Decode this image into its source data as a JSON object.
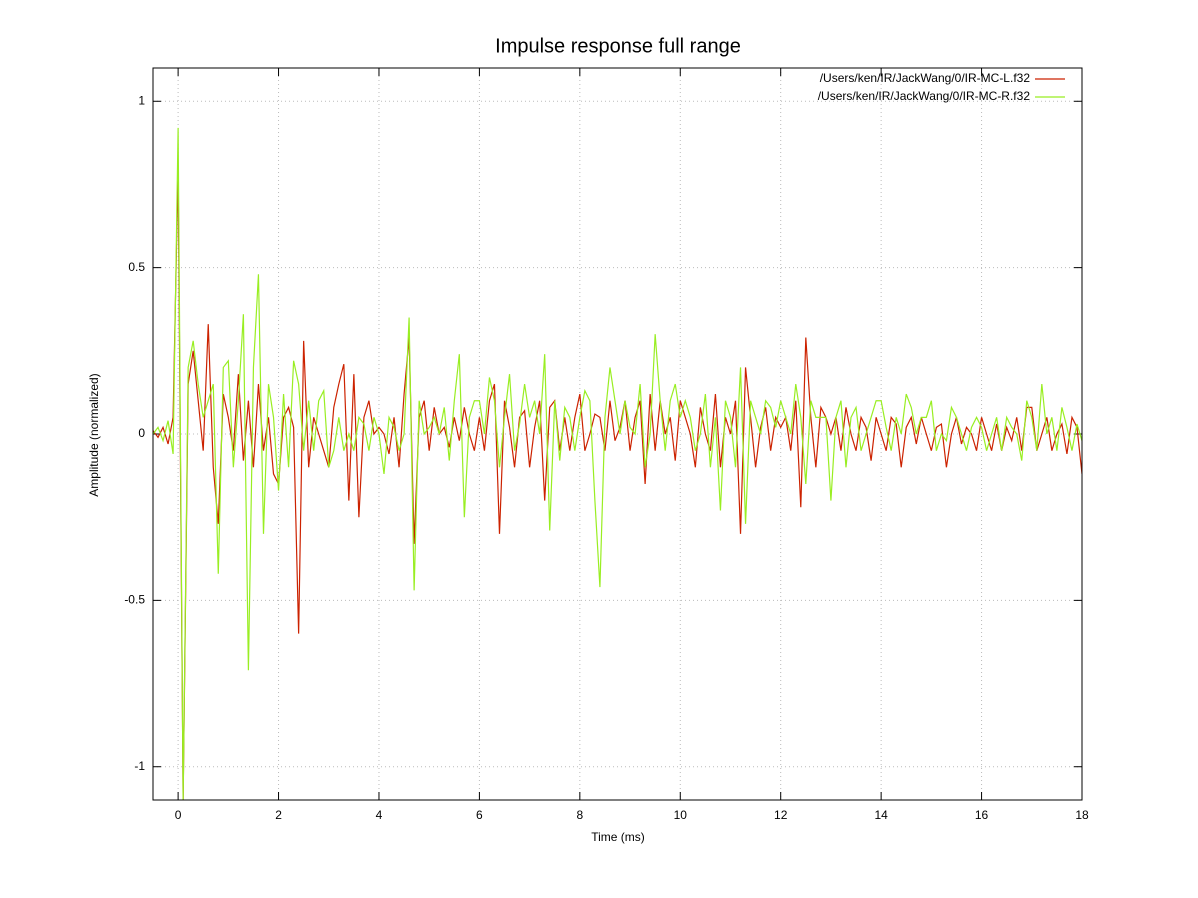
{
  "chart_data": {
    "type": "line",
    "title": "Impulse response full range",
    "x_label": "Time (ms)",
    "y_label": "Amplitude (normalized)",
    "xlim": [
      -0.5,
      18
    ],
    "ylim": [
      -1.1,
      1.1
    ],
    "xticks": [
      0,
      2,
      4,
      6,
      8,
      10,
      12,
      14,
      16,
      18
    ],
    "yticks": [
      -1,
      -0.5,
      0,
      0.5,
      1
    ],
    "grid": true,
    "legend": "top-right",
    "x": [
      -0.5,
      -0.4,
      -0.3,
      -0.2,
      -0.1,
      0.0,
      0.1,
      0.2,
      0.3,
      0.4,
      0.5,
      0.6,
      0.7,
      0.8,
      0.9,
      1.0,
      1.1,
      1.2,
      1.3,
      1.4,
      1.5,
      1.6,
      1.7,
      1.8,
      1.9,
      2.0,
      2.1,
      2.2,
      2.3,
      2.4,
      2.5,
      2.6,
      2.7,
      2.8,
      2.9,
      3.0,
      3.1,
      3.2,
      3.3,
      3.4,
      3.5,
      3.6,
      3.7,
      3.8,
      3.9,
      4.0,
      4.1,
      4.2,
      4.3,
      4.4,
      4.5,
      4.6,
      4.7,
      4.8,
      4.9,
      5.0,
      5.1,
      5.2,
      5.3,
      5.4,
      5.5,
      5.6,
      5.7,
      5.8,
      5.9,
      6.0,
      6.1,
      6.2,
      6.3,
      6.4,
      6.5,
      6.6,
      6.7,
      6.8,
      6.9,
      7.0,
      7.1,
      7.2,
      7.3,
      7.4,
      7.5,
      7.6,
      7.7,
      7.8,
      7.9,
      8.0,
      8.1,
      8.2,
      8.3,
      8.4,
      8.5,
      8.6,
      8.7,
      8.8,
      8.9,
      9.0,
      9.1,
      9.2,
      9.3,
      9.4,
      9.5,
      9.6,
      9.7,
      9.8,
      9.9,
      10.0,
      10.1,
      10.2,
      10.3,
      10.4,
      10.5,
      10.6,
      10.7,
      10.8,
      10.9,
      11.0,
      11.1,
      11.2,
      11.3,
      11.4,
      11.5,
      11.6,
      11.7,
      11.8,
      11.9,
      12.0,
      12.1,
      12.2,
      12.3,
      12.4,
      12.5,
      12.6,
      12.7,
      12.8,
      12.9,
      13.0,
      13.1,
      13.2,
      13.3,
      13.4,
      13.5,
      13.6,
      13.7,
      13.8,
      13.9,
      14.0,
      14.1,
      14.2,
      14.3,
      14.4,
      14.5,
      14.6,
      14.7,
      14.8,
      14.9,
      15.0,
      15.1,
      15.2,
      15.3,
      15.4,
      15.5,
      15.6,
      15.7,
      15.8,
      15.9,
      16.0,
      16.1,
      16.2,
      16.3,
      16.4,
      16.5,
      16.6,
      16.7,
      16.8,
      16.9,
      17.0,
      17.1,
      17.2,
      17.3,
      17.4,
      17.5,
      17.6,
      17.7,
      17.8,
      17.9,
      18.0
    ],
    "series": [
      {
        "name": "/Users/ken/IR/JackWang/0/IR-MC-L.f32",
        "color": "#cc2200",
        "values": [
          0.01,
          -0.01,
          0.02,
          -0.03,
          0.05,
          0.8,
          -1.1,
          0.15,
          0.25,
          0.1,
          -0.05,
          0.33,
          -0.1,
          -0.27,
          0.12,
          0.05,
          -0.05,
          0.18,
          -0.08,
          0.1,
          -0.1,
          0.15,
          -0.05,
          0.05,
          -0.12,
          -0.15,
          0.05,
          0.08,
          0.02,
          -0.6,
          0.28,
          -0.1,
          0.05,
          0.0,
          -0.05,
          -0.1,
          0.08,
          0.15,
          0.21,
          -0.2,
          0.18,
          -0.25,
          0.05,
          0.1,
          0.0,
          0.02,
          0.0,
          -0.06,
          0.05,
          -0.1,
          0.12,
          0.29,
          -0.33,
          0.05,
          0.1,
          -0.05,
          0.08,
          0.0,
          0.02,
          -0.04,
          0.05,
          -0.02,
          0.08,
          0.0,
          -0.05,
          0.05,
          -0.05,
          0.1,
          0.15,
          -0.3,
          0.1,
          0.02,
          -0.1,
          0.05,
          0.07,
          -0.1,
          0.02,
          0.1,
          -0.2,
          0.08,
          0.1,
          -0.05,
          0.05,
          -0.05,
          0.05,
          0.12,
          -0.05,
          0.0,
          0.06,
          0.05,
          -0.05,
          0.1,
          -0.02,
          0.02,
          0.1,
          -0.05,
          0.05,
          0.1,
          -0.15,
          0.12,
          -0.05,
          0.1,
          0.0,
          0.05,
          -0.08,
          0.1,
          0.05,
          0.0,
          -0.1,
          0.08,
          0.0,
          -0.05,
          0.12,
          -0.1,
          0.05,
          0.0,
          0.1,
          -0.3,
          0.2,
          0.05,
          -0.1,
          0.02,
          0.08,
          -0.05,
          0.05,
          0.02,
          0.05,
          -0.05,
          0.1,
          -0.22,
          0.29,
          0.05,
          -0.1,
          0.08,
          0.05,
          0.0,
          0.05,
          -0.05,
          0.08,
          0.0,
          -0.05,
          0.05,
          0.02,
          -0.08,
          0.05,
          0.0,
          -0.05,
          0.05,
          0.03,
          -0.1,
          0.02,
          0.05,
          -0.03,
          0.05,
          0.0,
          -0.05,
          0.02,
          0.03,
          -0.1,
          0.0,
          0.05,
          -0.03,
          0.02,
          0.0,
          -0.05,
          0.05,
          0.0,
          -0.05,
          0.03,
          -0.05,
          0.02,
          -0.02,
          0.05,
          -0.05,
          0.08,
          0.08,
          -0.05,
          0.0,
          0.05,
          -0.05,
          0.0,
          0.03,
          -0.06,
          0.05,
          0.02,
          -0.12
        ]
      },
      {
        "name": "/Users/ken/IR/JackWang/0/IR-MC-R.f32",
        "color": "#99ee22",
        "values": [
          0,
          0.02,
          -0.02,
          0.04,
          -0.06,
          0.92,
          -1.1,
          0.2,
          0.28,
          0.15,
          0.05,
          0.1,
          0.15,
          -0.42,
          0.2,
          0.22,
          -0.1,
          0.1,
          0.36,
          -0.71,
          0.2,
          0.48,
          -0.3,
          0.15,
          0.05,
          -0.17,
          0.12,
          -0.1,
          0.22,
          0.15,
          -0.05,
          0.1,
          -0.05,
          0.1,
          0.13,
          -0.1,
          -0.05,
          0.05,
          -0.05,
          0.0,
          -0.05,
          0.05,
          0.03,
          -0.05,
          0.05,
          0.0,
          -0.12,
          0.05,
          0.02,
          -0.05,
          0.0,
          0.35,
          -0.47,
          0.1,
          0.0,
          0.02,
          0.05,
          0.0,
          0.08,
          -0.08,
          0.1,
          0.24,
          -0.25,
          0.05,
          0.1,
          0.1,
          0.0,
          0.17,
          0.1,
          -0.1,
          0.05,
          0.18,
          -0.05,
          0.03,
          0.15,
          0.05,
          0.1,
          0.0,
          0.24,
          -0.29,
          0.1,
          -0.08,
          0.08,
          0.05,
          -0.05,
          0.05,
          0.13,
          0.1,
          -0.2,
          -0.46,
          0.05,
          0.2,
          0.1,
          0.0,
          0.1,
          0.02,
          0.0,
          0.15,
          -0.1,
          0.0,
          0.3,
          0.1,
          -0.05,
          0.1,
          0.15,
          0.05,
          0.1,
          0.05,
          -0.05,
          0.0,
          0.12,
          -0.1,
          0.05,
          -0.23,
          0.1,
          0.05,
          -0.1,
          0.2,
          -0.27,
          0.1,
          0.05,
          0.0,
          0.1,
          0.08,
          0.02,
          0.1,
          0.05,
          0.0,
          0.15,
          0.05,
          -0.15,
          0.1,
          0.05,
          0.05,
          0.05,
          -0.2,
          0.05,
          0.1,
          -0.1,
          0.05,
          0.08,
          -0.05,
          0.0,
          0.05,
          0.1,
          0.1,
          0.02,
          -0.05,
          0.05,
          0.0,
          0.12,
          0.08,
          0.0,
          0.05,
          0.05,
          0.1,
          -0.05,
          0.0,
          -0.02,
          0.08,
          0.05,
          0.0,
          -0.05,
          0.02,
          0.05,
          0.02,
          -0.05,
          0.0,
          0.05,
          -0.05,
          0.05,
          0.02,
          0.0,
          -0.08,
          0.1,
          0.05,
          -0.05,
          0.15,
          0.0,
          0.05,
          -0.05,
          0.08,
          0.02,
          -0.05,
          0.03,
          -0.02
        ]
      }
    ]
  }
}
